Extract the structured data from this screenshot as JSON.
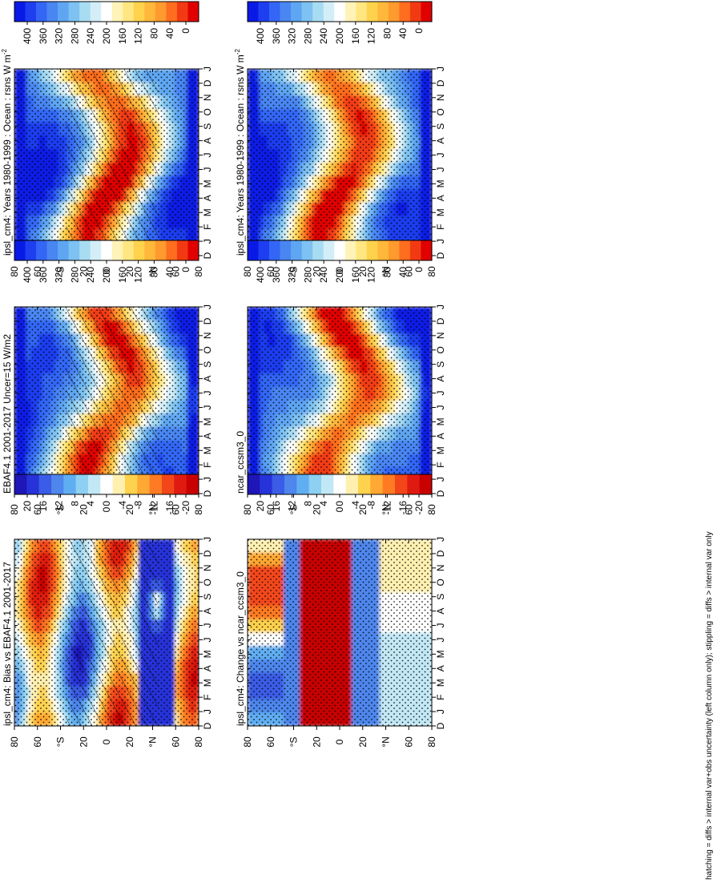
{
  "figure": {
    "footnote": "hatching = diffs > internal var+obs uncertainty (left column only); stippling = diffs > internal var only"
  },
  "palettes": {
    "clim": [
      "#0a1ae6",
      "#1e3ef0",
      "#3366f5",
      "#4a86f2",
      "#5ea6f2",
      "#7dc2f2",
      "#a8dcf2",
      "#d4eef8",
      "#ffffff",
      "#fff3b8",
      "#ffe680",
      "#ffd24d",
      "#ffb83a",
      "#ff9a2e",
      "#ff6d1f",
      "#f23a12",
      "#e00000"
    ],
    "diff": [
      "#1f16b8",
      "#2633d9",
      "#3a5ce6",
      "#4d86ec",
      "#60aef2",
      "#8dd0f2",
      "#c2e8f5",
      "#ffffff",
      "#fff0b0",
      "#ffd24d",
      "#ffa833",
      "#ff7a22",
      "#f2461a",
      "#e01a10",
      "#c80000"
    ]
  },
  "chart_data": [
    {
      "type": "heatmap",
      "id": "top-left",
      "title": "ipsl_cm4: Years 1980-1999 : Ocean : rsns W m",
      "title_sup": "-2",
      "months": [
        "D",
        "J",
        "F",
        "M",
        "A",
        "M",
        "J",
        "J",
        "A",
        "S",
        "O",
        "N",
        "D",
        "J"
      ],
      "lat_ticks": [
        "80",
        "60",
        "°N",
        "20",
        "0",
        "20",
        "°S",
        "60",
        "80"
      ],
      "colorbar_ticks": [
        "400",
        "360",
        "320",
        "280",
        "240",
        "200",
        "160",
        "120",
        "80",
        "40",
        "0"
      ],
      "hatching": "hatch+stipple"
    },
    {
      "type": "heatmap",
      "id": "top-right",
      "title": "ipsl_cm4: Years 1980-1999 : Ocean : rsns W m",
      "title_sup": "-2",
      "months": [
        "D",
        "J",
        "F",
        "M",
        "A",
        "M",
        "J",
        "J",
        "A",
        "S",
        "O",
        "N",
        "D",
        "J"
      ],
      "lat_ticks": [
        "80",
        "60",
        "°N",
        "20",
        "0",
        "20",
        "°S",
        "60",
        "80"
      ],
      "colorbar_ticks": [
        "400",
        "360",
        "320",
        "280",
        "240",
        "200",
        "160",
        "120",
        "80",
        "40",
        "0"
      ],
      "hatching": "stipple"
    },
    {
      "type": "heatmap",
      "id": "mid-left",
      "title": "EBAF4.1 2001-2017 Uncer=15 W/m2",
      "title_sup": "",
      "months": [
        "D",
        "J",
        "F",
        "M",
        "A",
        "M",
        "J",
        "J",
        "A",
        "S",
        "O",
        "N",
        "D",
        "J"
      ],
      "lat_ticks": [
        "80",
        "60",
        "°N",
        "20",
        "0",
        "20",
        "°S",
        "60",
        "80"
      ],
      "colorbar_ticks": [
        "400",
        "360",
        "320",
        "280",
        "240",
        "200",
        "160",
        "120",
        "80",
        "40",
        "0"
      ],
      "hatching": "hatch+stipple"
    },
    {
      "type": "heatmap",
      "id": "mid-right",
      "title": "ncar_ccsm3_0",
      "title_sup": "",
      "months": [
        "D",
        "J",
        "F",
        "M",
        "A",
        "M",
        "J",
        "J",
        "A",
        "S",
        "O",
        "N",
        "D",
        "J"
      ],
      "lat_ticks": [
        "80",
        "60",
        "°N",
        "20",
        "0",
        "20",
        "°S",
        "60",
        "80"
      ],
      "colorbar_ticks": [
        "400",
        "360",
        "320",
        "280",
        "240",
        "200",
        "160",
        "120",
        "80",
        "40",
        "0"
      ],
      "hatching": "stipple"
    },
    {
      "type": "heatmap",
      "id": "bot-left",
      "title": "ipsl_cm4: Bias vs EBAF4.1 2001-2017",
      "title_sup": "",
      "months": [
        "D",
        "J",
        "F",
        "M",
        "A",
        "M",
        "J",
        "J",
        "A",
        "S",
        "O",
        "N",
        "D",
        "J"
      ],
      "lat_ticks": [
        "80",
        "60",
        "°N",
        "20",
        "0",
        "20",
        "°S",
        "60",
        "80"
      ],
      "colorbar_ticks": [
        "20",
        "16",
        "12",
        "8",
        "4",
        "0",
        "-4",
        "-8",
        "-12",
        "-16",
        "-20"
      ],
      "hatching": "hatch+stipple"
    },
    {
      "type": "heatmap",
      "id": "bot-right",
      "title": "ipsl_cm4: Change vs ncar_ccsm3_0",
      "title_sup": "",
      "months": [
        "D",
        "J",
        "F",
        "M",
        "A",
        "M",
        "J",
        "J",
        "A",
        "S",
        "O",
        "N",
        "D",
        "J"
      ],
      "lat_ticks": [
        "80",
        "60",
        "°N",
        "20",
        "0",
        "20",
        "°S",
        "60",
        "80"
      ],
      "colorbar_ticks": [
        "20",
        "16",
        "12",
        "8",
        "4",
        "0",
        "-4",
        "-8",
        "-12",
        "-16",
        "-20"
      ],
      "hatching": "stipple"
    }
  ]
}
